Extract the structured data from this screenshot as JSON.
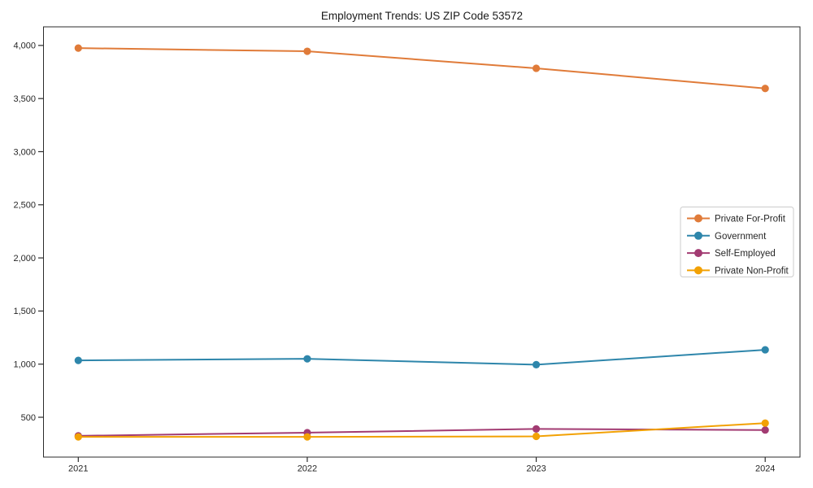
{
  "figure": {
    "title": "Employment Trends: US ZIP Code 53572"
  },
  "chart_data": {
    "type": "line",
    "title": "Employment Trends: US ZIP Code 53572",
    "xlabel": "",
    "ylabel": "",
    "x_labels": [
      "2021",
      "2022",
      "2023",
      "2024"
    ],
    "series": [
      {
        "name": "Private For-Profit",
        "color": "#E07B39",
        "values": [
          3975,
          3945,
          3785,
          3595
        ]
      },
      {
        "name": "Government",
        "color": "#2E86AB",
        "values": [
          1035,
          1050,
          995,
          1135
        ]
      },
      {
        "name": "Self-Employed",
        "color": "#A23B72",
        "values": [
          325,
          355,
          390,
          380
        ]
      },
      {
        "name": "Private Non-Profit",
        "color": "#F2A104",
        "values": [
          315,
          315,
          320,
          445
        ]
      }
    ],
    "ylim": [
      125,
      4175
    ],
    "yticks": [
      500,
      1000,
      1500,
      2000,
      2500,
      3000,
      3500,
      4000
    ],
    "ytick_labels": [
      "500",
      "1,000",
      "1,500",
      "2,000",
      "2,500",
      "3,000",
      "3,500",
      "4,000"
    ],
    "grid": false,
    "legend_position": "center-right",
    "marker": "circle",
    "background": "#ffffff",
    "axis_color": "#2b2b2b",
    "text_color": "#262626",
    "legend_border_color": "#cccccc"
  }
}
